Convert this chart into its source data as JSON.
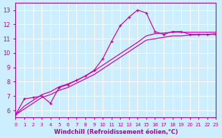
{
  "title": "",
  "xlabel": "Windchill (Refroidissement éolien,°C)",
  "ylabel": "",
  "background_color": "#cceeff",
  "grid_color": "#ffffff",
  "line_color": "#cc00aa",
  "xlim": [
    0,
    23
  ],
  "ylim": [
    5.5,
    13.5
  ],
  "yticks": [
    6,
    7,
    8,
    9,
    10,
    11,
    12,
    13
  ],
  "xticks": [
    0,
    1,
    2,
    3,
    4,
    5,
    6,
    7,
    8,
    9,
    10,
    11,
    12,
    13,
    14,
    15,
    16,
    17,
    18,
    19,
    20,
    21,
    22,
    23
  ],
  "series1_x": [
    0,
    1,
    2,
    3,
    4,
    5,
    6,
    7,
    8,
    9,
    10,
    11,
    12,
    13,
    14,
    15,
    16,
    17,
    18,
    19,
    20,
    21,
    22,
    23
  ],
  "series1_y": [
    5.7,
    6.8,
    6.9,
    7.0,
    6.5,
    7.6,
    7.8,
    8.1,
    8.4,
    8.8,
    9.6,
    10.8,
    11.9,
    12.5,
    13.0,
    12.8,
    11.5,
    11.3,
    11.5,
    11.5,
    11.3,
    11.3,
    11.3,
    11.3
  ],
  "series2_x": [
    0,
    1,
    2,
    3,
    4,
    5,
    6,
    7,
    8,
    9,
    10,
    11,
    12,
    13,
    14,
    15,
    16,
    17,
    18,
    19,
    20,
    21,
    22,
    23
  ],
  "series2_y": [
    5.7,
    6.1,
    6.5,
    6.9,
    7.1,
    7.4,
    7.6,
    7.9,
    8.2,
    8.5,
    8.9,
    9.3,
    9.7,
    10.1,
    10.5,
    10.9,
    11.0,
    11.1,
    11.2,
    11.2,
    11.25,
    11.3,
    11.3,
    11.35
  ],
  "series3_x": [
    0,
    1,
    2,
    3,
    4,
    5,
    6,
    7,
    8,
    9,
    10,
    11,
    12,
    13,
    14,
    15,
    16,
    17,
    18,
    19,
    20,
    21,
    22,
    23
  ],
  "series3_y": [
    5.7,
    6.3,
    6.7,
    7.1,
    7.3,
    7.65,
    7.85,
    8.1,
    8.4,
    8.75,
    9.15,
    9.55,
    9.95,
    10.35,
    10.75,
    11.2,
    11.35,
    11.4,
    11.45,
    11.45,
    11.45,
    11.45,
    11.45,
    11.45
  ]
}
